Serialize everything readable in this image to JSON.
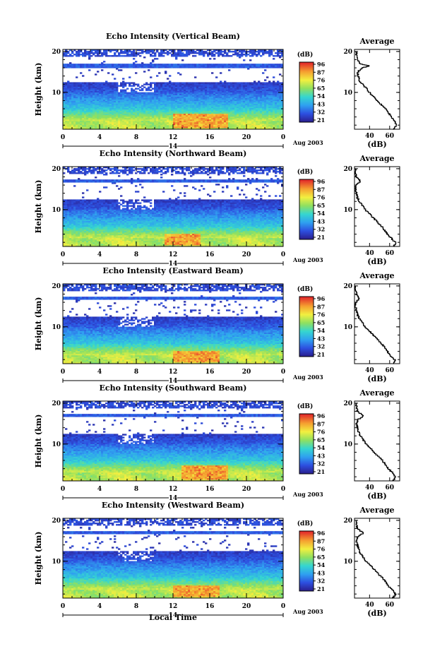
{
  "figure": {
    "xlabel": "Local Time",
    "date_label": "Aug 2003",
    "day_label": "14",
    "avg_title": "Average",
    "avg_xlabel": "(dB)",
    "cbar_title": "(dB)",
    "ylabel": "Height (km)"
  },
  "chart_data": [
    {
      "type": "heatmap",
      "title": "Echo Intensity (Vertical Beam)",
      "xlabel": "Local Time",
      "ylabel": "Height (km)",
      "x_ticks": [
        "0",
        "4",
        "8",
        "12",
        "16",
        "20",
        "0"
      ],
      "y_ticks": [
        "10",
        "20"
      ],
      "xlim": [
        0,
        24
      ],
      "ylim": [
        1,
        20.5
      ],
      "colorbar": {
        "label": "(dB)",
        "ticks": [
          "96",
          "87",
          "76",
          "65",
          "54",
          "43",
          "32",
          "21"
        ]
      },
      "tropopause_km": 16.5,
      "hot_region": {
        "time_h": [
          12,
          18
        ],
        "height_km": [
          1.5,
          5
        ]
      },
      "average_profile": {
        "title": "Average",
        "xlabel": "(dB)",
        "x_ticks": [
          "40",
          "60"
        ],
        "y_ticks": [
          "10",
          "20"
        ],
        "heights_km": [
          1,
          2,
          3,
          4,
          5,
          6,
          7,
          8,
          9,
          10,
          11,
          12,
          13,
          14,
          15,
          16,
          16.5,
          17,
          18,
          19,
          20
        ],
        "values_db": [
          63,
          67,
          65,
          62,
          59,
          56,
          52,
          48,
          44,
          40,
          37,
          33,
          30,
          29,
          28,
          32,
          40,
          31,
          28,
          27,
          27
        ]
      }
    },
    {
      "type": "heatmap",
      "title": "Echo Intensity (Northward Beam)",
      "xlabel": "Local Time",
      "ylabel": "Height (km)",
      "x_ticks": [
        "0",
        "4",
        "8",
        "12",
        "16",
        "20",
        "0"
      ],
      "y_ticks": [
        "10",
        "20"
      ],
      "xlim": [
        0,
        24
      ],
      "ylim": [
        1,
        20.5
      ],
      "colorbar": {
        "label": "(dB)",
        "ticks": [
          "96",
          "87",
          "76",
          "65",
          "54",
          "43",
          "32",
          "21"
        ]
      },
      "tropopause_km": 17,
      "hot_region": {
        "time_h": [
          11,
          15
        ],
        "height_km": [
          1.5,
          4
        ]
      },
      "average_profile": {
        "title": "Average",
        "xlabel": "(dB)",
        "x_ticks": [
          "40",
          "60"
        ],
        "y_ticks": [
          "10",
          "20"
        ],
        "heights_km": [
          1,
          2,
          3,
          4,
          5,
          6,
          7,
          8,
          9,
          10,
          11,
          12,
          13,
          14,
          15,
          16,
          17,
          18,
          19,
          20
        ],
        "values_db": [
          64,
          66,
          62,
          58,
          55,
          52,
          48,
          44,
          40,
          36,
          33,
          30,
          28,
          27,
          26,
          26,
          31,
          27,
          26,
          26
        ]
      }
    },
    {
      "type": "heatmap",
      "title": "Echo Intensity (Eastward Beam)",
      "xlabel": "Local Time",
      "ylabel": "Height (km)",
      "x_ticks": [
        "0",
        "4",
        "8",
        "12",
        "16",
        "20",
        "0"
      ],
      "y_ticks": [
        "10",
        "20"
      ],
      "xlim": [
        0,
        24
      ],
      "ylim": [
        1,
        20.5
      ],
      "colorbar": {
        "label": "(dB)",
        "ticks": [
          "96",
          "87",
          "76",
          "65",
          "54",
          "43",
          "32",
          "21"
        ]
      },
      "tropopause_km": 17,
      "hot_region": {
        "time_h": [
          12,
          17
        ],
        "height_km": [
          1.5,
          4
        ]
      },
      "average_profile": {
        "title": "Average",
        "xlabel": "(dB)",
        "x_ticks": [
          "40",
          "60"
        ],
        "y_ticks": [
          "10",
          "20"
        ],
        "heights_km": [
          1,
          2,
          3,
          4,
          5,
          6,
          7,
          8,
          9,
          10,
          11,
          12,
          13,
          14,
          15,
          16,
          17,
          18,
          19,
          20
        ],
        "values_db": [
          64,
          65,
          61,
          58,
          55,
          52,
          48,
          44,
          40,
          36,
          33,
          30,
          28,
          27,
          26,
          26,
          30,
          27,
          26,
          26
        ]
      }
    },
    {
      "type": "heatmap",
      "title": "Echo Intensity (Southward Beam)",
      "xlabel": "Local Time",
      "ylabel": "Height (km)",
      "x_ticks": [
        "0",
        "4",
        "8",
        "12",
        "16",
        "20",
        "0"
      ],
      "y_ticks": [
        "10",
        "20"
      ],
      "xlim": [
        0,
        24
      ],
      "ylim": [
        1,
        20.5
      ],
      "colorbar": {
        "label": "(dB)",
        "ticks": [
          "96",
          "87",
          "76",
          "65",
          "54",
          "43",
          "32",
          "21"
        ]
      },
      "tropopause_km": 17,
      "hot_region": {
        "time_h": [
          13,
          18
        ],
        "height_km": [
          1.5,
          5
        ]
      },
      "average_profile": {
        "title": "Average",
        "xlabel": "(dB)",
        "x_ticks": [
          "40",
          "60"
        ],
        "y_ticks": [
          "10",
          "20"
        ],
        "heights_km": [
          1,
          2,
          3,
          4,
          5,
          6,
          7,
          8,
          9,
          10,
          11,
          12,
          13,
          14,
          15,
          16,
          17,
          18,
          19,
          20
        ],
        "values_db": [
          63,
          66,
          63,
          59,
          56,
          53,
          49,
          45,
          41,
          37,
          34,
          31,
          29,
          28,
          27,
          28,
          34,
          28,
          27,
          27
        ]
      }
    },
    {
      "type": "heatmap",
      "title": "Echo Intensity (Westward Beam)",
      "xlabel": "Local Time",
      "ylabel": "Height (km)",
      "x_ticks": [
        "0",
        "4",
        "8",
        "12",
        "16",
        "20",
        "0"
      ],
      "y_ticks": [
        "10",
        "20"
      ],
      "xlim": [
        0,
        24
      ],
      "ylim": [
        1,
        20.5
      ],
      "colorbar": {
        "label": "(dB)",
        "ticks": [
          "96",
          "87",
          "76",
          "65",
          "54",
          "43",
          "32",
          "21"
        ]
      },
      "tropopause_km": 17,
      "hot_region": {
        "time_h": [
          12,
          17
        ],
        "height_km": [
          1.5,
          4
        ]
      },
      "average_profile": {
        "title": "Average",
        "xlabel": "(dB)",
        "x_ticks": [
          "40",
          "60"
        ],
        "y_ticks": [
          "10",
          "20"
        ],
        "heights_km": [
          1,
          2,
          3,
          4,
          5,
          6,
          7,
          8,
          9,
          10,
          11,
          12,
          13,
          14,
          15,
          16,
          17,
          18,
          19,
          20
        ],
        "values_db": [
          63,
          66,
          63,
          59,
          56,
          53,
          49,
          45,
          41,
          37,
          34,
          31,
          29,
          28,
          27,
          28,
          34,
          28,
          27,
          27
        ]
      }
    }
  ]
}
